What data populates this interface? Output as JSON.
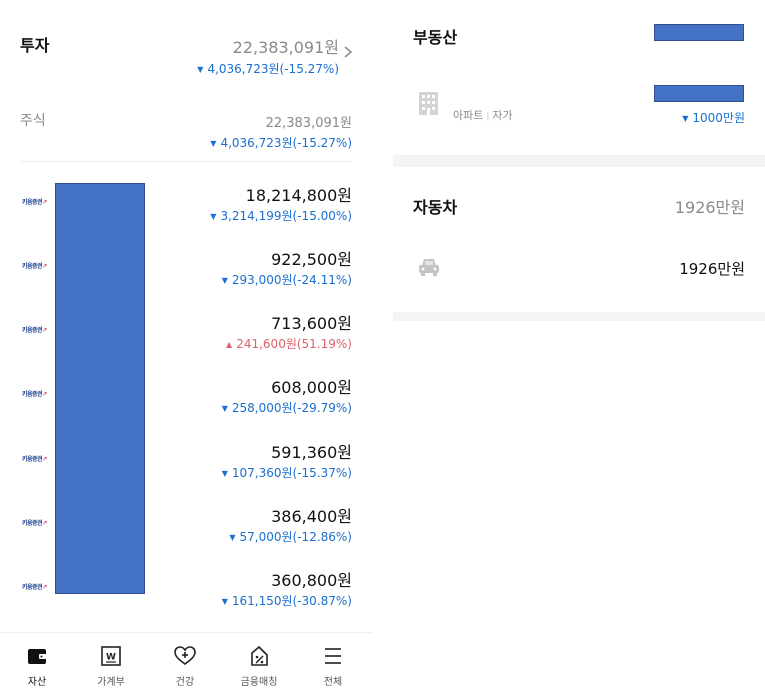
{
  "investment": {
    "title": "투자",
    "total": "22,383,091원",
    "change": "4,036,723원(-15.27%)"
  },
  "stocks": {
    "label": "주식",
    "total": "22,383,091원",
    "change": "4,036,723원(-15.27%)"
  },
  "broker_logo": "키움증권",
  "holdings": [
    {
      "amount": "18,214,800원",
      "change": "3,214,199원(-15.00%)",
      "direction": "down"
    },
    {
      "amount": "922,500원",
      "change": "293,000원(-24.11%)",
      "direction": "down"
    },
    {
      "amount": "713,600원",
      "change": "241,600원(51.19%)",
      "direction": "up"
    },
    {
      "amount": "608,000원",
      "change": "258,000원(-29.79%)",
      "direction": "down"
    },
    {
      "amount": "591,360원",
      "change": "107,360원(-15.37%)",
      "direction": "down"
    },
    {
      "amount": "386,400원",
      "change": "57,000원(-12.86%)",
      "direction": "down"
    },
    {
      "amount": "360,800원",
      "change": "161,150원(-30.87%)",
      "direction": "down"
    }
  ],
  "real_estate": {
    "title": "부동산",
    "item_type": "아파트",
    "item_owner": "자가",
    "item_change": "1000만원"
  },
  "car": {
    "title": "자동차",
    "total": "1926만원",
    "item_value": "1926만원"
  },
  "nav": [
    {
      "label": "자산",
      "icon": "wallet-icon"
    },
    {
      "label": "가계부",
      "icon": "ledger-icon"
    },
    {
      "label": "건강",
      "icon": "heart-plus-icon"
    },
    {
      "label": "금융매칭",
      "icon": "percent-tag-icon"
    },
    {
      "label": "전체",
      "icon": "menu-icon"
    }
  ],
  "colors": {
    "down": "#1a6fd0",
    "up": "#e0606a",
    "redaction": "#4472c4"
  }
}
